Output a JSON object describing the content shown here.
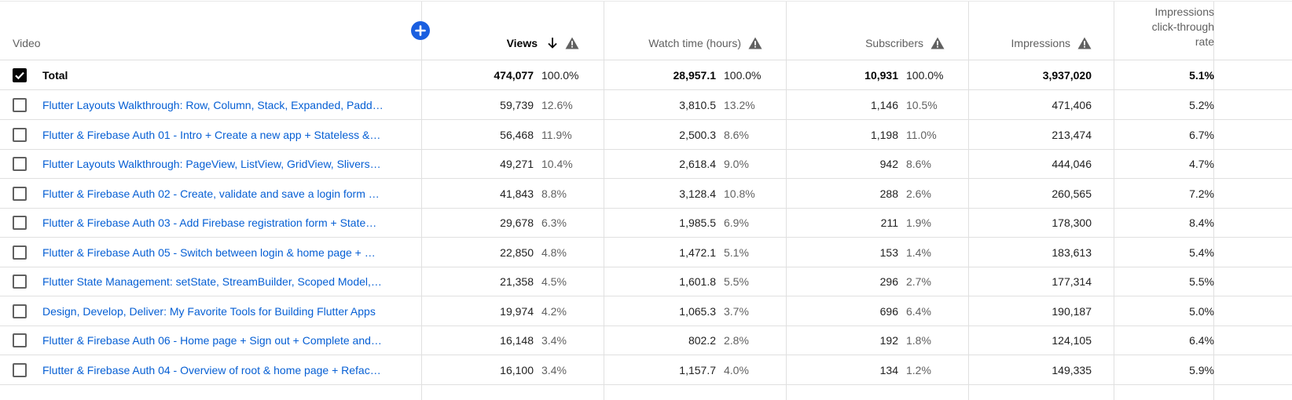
{
  "header": {
    "video": "Video",
    "views": "Views",
    "watch_time": "Watch time (hours)",
    "subscribers": "Subscribers",
    "impressions": "Impressions",
    "ctr": "Impressions click-through rate",
    "sort_icon": "arrow-down-icon",
    "warning_icon": "warning-triangle-icon",
    "add_icon": "add-column-plus-icon",
    "accent_color": "#1a5fe0",
    "link_color": "#065fd4"
  },
  "total": {
    "label": "Total",
    "checked": true,
    "views": "474,077",
    "views_pct": "100.0%",
    "watch": "28,957.1",
    "watch_pct": "100.0%",
    "subs": "10,931",
    "subs_pct": "100.0%",
    "impressions": "3,937,020",
    "ctr": "5.1%"
  },
  "rows": [
    {
      "title": "Flutter Layouts Walkthrough: Row, Column, Stack, Expanded, Padd…",
      "views": "59,739",
      "views_pct": "12.6%",
      "watch": "3,810.5",
      "watch_pct": "13.2%",
      "subs": "1,146",
      "subs_pct": "10.5%",
      "impressions": "471,406",
      "ctr": "5.2%"
    },
    {
      "title": "Flutter & Firebase Auth 01 - Intro + Create a new app + Stateless &…",
      "views": "56,468",
      "views_pct": "11.9%",
      "watch": "2,500.3",
      "watch_pct": "8.6%",
      "subs": "1,198",
      "subs_pct": "11.0%",
      "impressions": "213,474",
      "ctr": "6.7%"
    },
    {
      "title": "Flutter Layouts Walkthrough: PageView, ListView, GridView, Slivers…",
      "views": "49,271",
      "views_pct": "10.4%",
      "watch": "2,618.4",
      "watch_pct": "9.0%",
      "subs": "942",
      "subs_pct": "8.6%",
      "impressions": "444,046",
      "ctr": "4.7%"
    },
    {
      "title": "Flutter & Firebase Auth 02 - Create, validate and save a login form …",
      "views": "41,843",
      "views_pct": "8.8%",
      "watch": "3,128.4",
      "watch_pct": "10.8%",
      "subs": "288",
      "subs_pct": "2.6%",
      "impressions": "260,565",
      "ctr": "7.2%"
    },
    {
      "title": "Flutter & Firebase Auth 03 - Add Firebase registration form + State…",
      "views": "29,678",
      "views_pct": "6.3%",
      "watch": "1,985.5",
      "watch_pct": "6.9%",
      "subs": "211",
      "subs_pct": "1.9%",
      "impressions": "178,300",
      "ctr": "8.4%"
    },
    {
      "title": "Flutter & Firebase Auth 05 - Switch between login & home page + …",
      "views": "22,850",
      "views_pct": "4.8%",
      "watch": "1,472.1",
      "watch_pct": "5.1%",
      "subs": "153",
      "subs_pct": "1.4%",
      "impressions": "183,613",
      "ctr": "5.4%"
    },
    {
      "title": "Flutter State Management: setState, StreamBuilder, Scoped Model,…",
      "views": "21,358",
      "views_pct": "4.5%",
      "watch": "1,601.8",
      "watch_pct": "5.5%",
      "subs": "296",
      "subs_pct": "2.7%",
      "impressions": "177,314",
      "ctr": "5.5%"
    },
    {
      "title": "Design, Develop, Deliver: My Favorite Tools for Building Flutter Apps",
      "views": "19,974",
      "views_pct": "4.2%",
      "watch": "1,065.3",
      "watch_pct": "3.7%",
      "subs": "696",
      "subs_pct": "6.4%",
      "impressions": "190,187",
      "ctr": "5.0%"
    },
    {
      "title": "Flutter & Firebase Auth 06 - Home page + Sign out + Complete and…",
      "views": "16,148",
      "views_pct": "3.4%",
      "watch": "802.2",
      "watch_pct": "2.8%",
      "subs": "192",
      "subs_pct": "1.8%",
      "impressions": "124,105",
      "ctr": "6.4%"
    },
    {
      "title": "Flutter & Firebase Auth 04 - Overview of root & home page + Refac…",
      "views": "16,100",
      "views_pct": "3.4%",
      "watch": "1,157.7",
      "watch_pct": "4.0%",
      "subs": "134",
      "subs_pct": "1.2%",
      "impressions": "149,335",
      "ctr": "5.9%"
    }
  ]
}
